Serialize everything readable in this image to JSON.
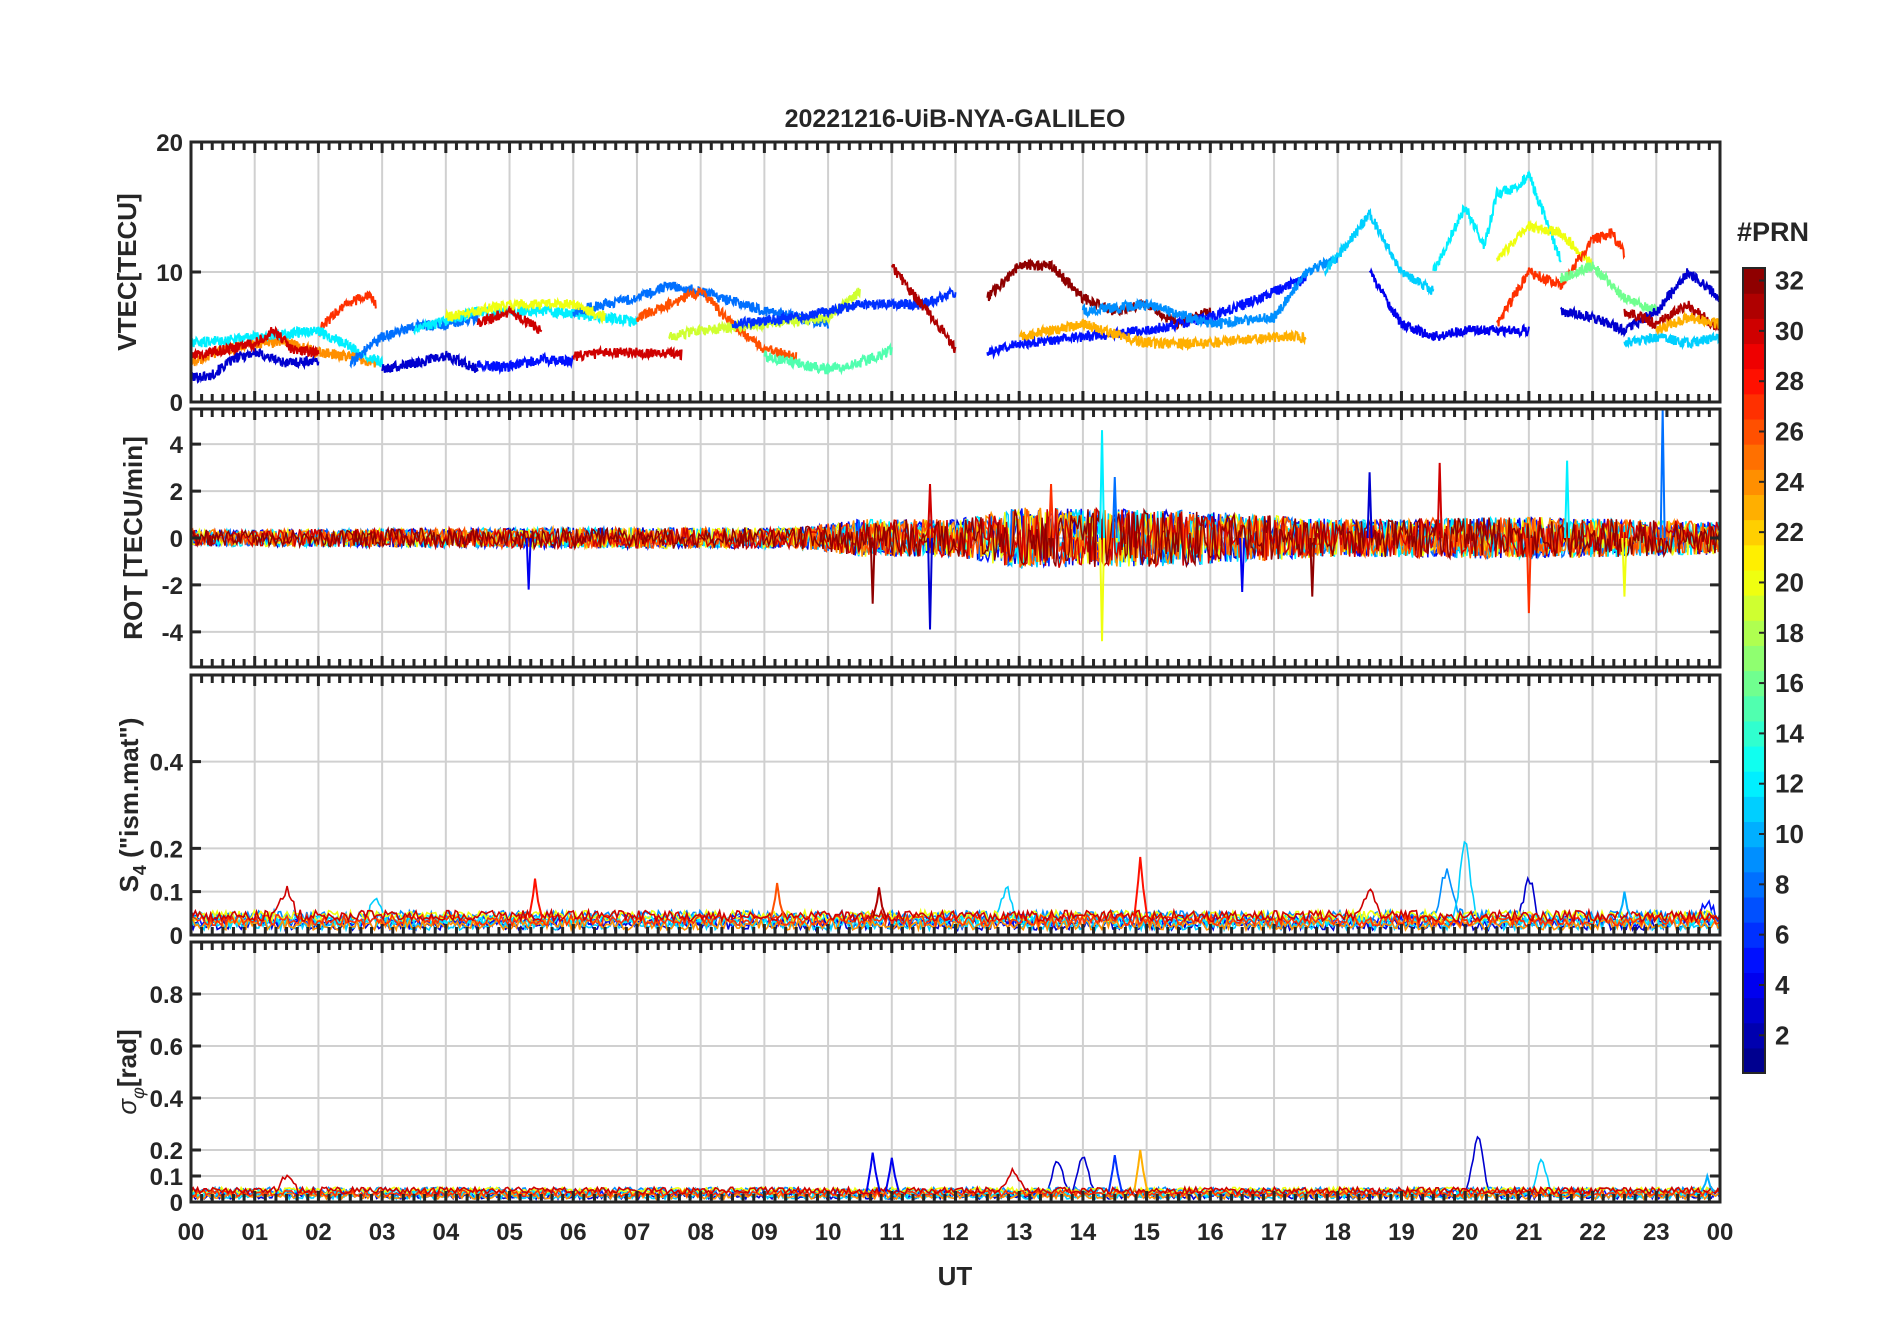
{
  "figure": {
    "title": "20221216-UiB-NYA-GALILEO",
    "xlabel": "UT",
    "x_tick_labels": [
      "00",
      "01",
      "02",
      "03",
      "04",
      "05",
      "06",
      "07",
      "08",
      "09",
      "10",
      "11",
      "12",
      "13",
      "14",
      "15",
      "16",
      "17",
      "18",
      "19",
      "20",
      "21",
      "22",
      "23",
      "00"
    ],
    "colorbar": {
      "label": "#PRN",
      "range": [
        1,
        32
      ],
      "tick_labels": [
        "2",
        "4",
        "6",
        "8",
        "10",
        "12",
        "14",
        "16",
        "18",
        "20",
        "22",
        "24",
        "26",
        "28",
        "30",
        "32"
      ],
      "colormap": "jet"
    }
  },
  "chart_data": [
    {
      "type": "line",
      "panel": "vtec",
      "ylabel": "VTEC[TECU]",
      "ylim": [
        0,
        20
      ],
      "y_ticks": [
        0,
        10,
        20
      ],
      "y_tick_labels": [
        "0",
        "10",
        "20"
      ],
      "xlim_hours": [
        0,
        24
      ],
      "grid": true,
      "legend": "colorbar (PRN)",
      "series": [
        {
          "prn": 3,
          "x": [
            0.0,
            0.3,
            0.7,
            1.0,
            1.5,
            2.0
          ],
          "y": [
            1.9,
            2.0,
            3.4,
            3.8,
            3.0,
            3.2
          ]
        },
        {
          "prn": 24,
          "x": [
            0.0,
            0.5,
            1.0,
            1.5,
            2.0,
            2.5,
            2.9
          ],
          "y": [
            3.0,
            4.0,
            4.5,
            4.6,
            3.8,
            3.5,
            3.0
          ]
        },
        {
          "prn": 27,
          "x": [
            2.0,
            2.4,
            2.8,
            2.9
          ],
          "y": [
            5.5,
            7.5,
            8.2,
            7.5
          ]
        },
        {
          "prn": 12,
          "x": [
            0.0,
            1.0,
            2.0,
            3.0
          ],
          "y": [
            4.5,
            5.0,
            5.5,
            3.0
          ]
        },
        {
          "prn": 30,
          "x": [
            0.0,
            1.0,
            1.3,
            1.6,
            2.0
          ],
          "y": [
            3.5,
            4.5,
            5.5,
            4.0,
            3.8
          ]
        },
        {
          "prn": 8,
          "x": [
            2.5,
            3.0,
            3.5,
            4.0,
            4.5
          ],
          "y": [
            3.0,
            5.0,
            5.8,
            6.0,
            6.5
          ]
        },
        {
          "prn": 3,
          "x": [
            3.0,
            3.5,
            4.0,
            4.5
          ],
          "y": [
            2.5,
            3.0,
            3.6,
            2.5
          ]
        },
        {
          "prn": 5,
          "x": [
            4.5,
            5.0,
            5.5,
            6.0
          ],
          "y": [
            2.8,
            2.7,
            3.3,
            3.2
          ]
        },
        {
          "prn": 12,
          "x": [
            3.5,
            4.5,
            5.5,
            6.5,
            7.0
          ],
          "y": [
            5.5,
            7.0,
            7.0,
            6.5,
            6.2
          ]
        },
        {
          "prn": 30,
          "x": [
            4.5,
            5.0,
            5.5
          ],
          "y": [
            6.0,
            7.0,
            5.5
          ]
        },
        {
          "prn": 8,
          "x": [
            6.0,
            7.0,
            7.5,
            8.0,
            9.0,
            10.0
          ],
          "y": [
            7.0,
            8.0,
            9.0,
            8.5,
            7.0,
            6.0
          ]
        },
        {
          "prn": 30,
          "x": [
            6.0,
            6.5,
            7.0,
            7.7
          ],
          "y": [
            3.5,
            3.8,
            3.8,
            3.7
          ]
        },
        {
          "prn": 20,
          "x": [
            4.0,
            5.0,
            6.0,
            6.5
          ],
          "y": [
            6.5,
            7.5,
            7.5,
            6.5
          ]
        },
        {
          "prn": 26,
          "x": [
            7.0,
            7.5,
            8.0,
            8.5,
            9.0,
            9.5
          ],
          "y": [
            6.5,
            7.5,
            8.5,
            6.0,
            4.0,
            3.5
          ]
        },
        {
          "prn": 19,
          "x": [
            7.5,
            8.0,
            9.0,
            10.0,
            10.5
          ],
          "y": [
            5.0,
            5.5,
            6.0,
            6.5,
            8.5
          ]
        },
        {
          "prn": 15,
          "x": [
            9.0,
            9.5,
            10.0,
            10.5,
            11.0
          ],
          "y": [
            3.5,
            3.0,
            2.5,
            3.0,
            4.0
          ]
        },
        {
          "prn": 6,
          "x": [
            8.5,
            9.5,
            10.5,
            11.5,
            12.0
          ],
          "y": [
            6.0,
            6.5,
            7.5,
            7.5,
            8.5
          ]
        },
        {
          "prn": 31,
          "x": [
            11.0,
            11.3,
            11.8,
            12.0
          ],
          "y": [
            10.5,
            8.5,
            5.5,
            4.0
          ]
        },
        {
          "prn": 32,
          "x": [
            12.5,
            13.0,
            13.5,
            14.0,
            14.5,
            15.0,
            15.5,
            16.0
          ],
          "y": [
            8.0,
            10.5,
            10.5,
            8.0,
            7.0,
            7.5,
            6.0,
            7.0
          ]
        },
        {
          "prn": 5,
          "x": [
            12.5,
            13.0,
            14.0,
            15.0,
            16.0,
            17.0,
            17.5
          ],
          "y": [
            3.8,
            4.5,
            5.0,
            5.5,
            6.5,
            8.5,
            9.5
          ]
        },
        {
          "prn": 23,
          "x": [
            13.0,
            14.0,
            15.0,
            16.0,
            17.0,
            17.5
          ],
          "y": [
            5.0,
            6.0,
            4.5,
            4.5,
            5.0,
            5.0
          ]
        },
        {
          "prn": 9,
          "x": [
            14.0,
            15.0,
            16.0,
            17.0,
            17.5,
            18.0
          ],
          "y": [
            7.0,
            7.5,
            6.0,
            6.5,
            10.0,
            11.0
          ]
        },
        {
          "prn": 11,
          "x": [
            17.8,
            18.2,
            18.5,
            19.0,
            19.5
          ],
          "y": [
            10.0,
            12.5,
            14.5,
            10.0,
            8.5
          ]
        },
        {
          "prn": 4,
          "x": [
            18.5,
            19.0,
            19.5,
            20.0,
            21.0
          ],
          "y": [
            10.0,
            6.0,
            5.0,
            5.5,
            5.5
          ]
        },
        {
          "prn": 12,
          "x": [
            19.5,
            20.0,
            20.3,
            20.5,
            20.8,
            21.0,
            21.5
          ],
          "y": [
            10.0,
            15.0,
            12.0,
            16.0,
            16.5,
            17.5,
            11.0
          ]
        },
        {
          "prn": 20,
          "x": [
            20.5,
            21.0,
            21.5,
            22.0
          ],
          "y": [
            11.0,
            13.5,
            13.0,
            10.5
          ]
        },
        {
          "prn": 27,
          "x": [
            20.5,
            21.0,
            21.5,
            22.0,
            22.3,
            22.5
          ],
          "y": [
            6.0,
            10.0,
            9.0,
            12.5,
            13.0,
            11.5
          ]
        },
        {
          "prn": 16,
          "x": [
            21.5,
            22.0,
            22.5,
            23.0
          ],
          "y": [
            9.5,
            10.5,
            8.0,
            7.0
          ]
        },
        {
          "prn": 11,
          "x": [
            22.5,
            23.0,
            23.5,
            24.0
          ],
          "y": [
            4.5,
            5.0,
            4.5,
            5.0
          ]
        },
        {
          "prn": 3,
          "x": [
            21.5,
            22.0,
            22.5,
            23.0,
            23.5,
            24.0
          ],
          "y": [
            7.0,
            6.5,
            5.5,
            7.0,
            10.0,
            8.0
          ]
        },
        {
          "prn": 31,
          "x": [
            22.5,
            23.0,
            23.5,
            24.0
          ],
          "y": [
            7.0,
            6.0,
            7.5,
            5.5
          ]
        },
        {
          "prn": 23,
          "x": [
            23.0,
            23.5,
            24.0
          ],
          "y": [
            5.5,
            6.5,
            6.0
          ]
        }
      ]
    },
    {
      "type": "line",
      "panel": "rot",
      "ylabel": "ROT [TECU/min]",
      "ylim": [
        -5.5,
        5.5
      ],
      "y_ticks": [
        -4,
        -2,
        0,
        2,
        4
      ],
      "y_tick_labels": [
        "-4",
        "-2",
        "0",
        "2",
        "4"
      ],
      "xlim_hours": [
        0,
        24
      ],
      "grid": true,
      "noise_envelope_hours": [
        0,
        6,
        9.5,
        10.5,
        12,
        13,
        15.5,
        18,
        21,
        24
      ],
      "noise_envelope_amplitude": [
        0.35,
        0.45,
        0.45,
        0.8,
        0.8,
        1.3,
        1.2,
        0.8,
        0.9,
        0.7
      ],
      "spikes": [
        {
          "x": 5.3,
          "y": -2.2
        },
        {
          "x": 10.7,
          "y": -2.8
        },
        {
          "x": 11.6,
          "y": -3.9
        },
        {
          "x": 11.6,
          "y": 2.3
        },
        {
          "x": 13.5,
          "y": 2.3
        },
        {
          "x": 14.3,
          "y": 4.6
        },
        {
          "x": 14.3,
          "y": -4.4
        },
        {
          "x": 14.5,
          "y": 2.6
        },
        {
          "x": 16.5,
          "y": -2.3
        },
        {
          "x": 17.6,
          "y": -2.5
        },
        {
          "x": 18.5,
          "y": 2.8
        },
        {
          "x": 19.6,
          "y": 3.2
        },
        {
          "x": 21.0,
          "y": -3.2
        },
        {
          "x": 21.6,
          "y": 3.3
        },
        {
          "x": 22.5,
          "y": -2.5
        },
        {
          "x": 23.1,
          "y": 5.5
        }
      ]
    },
    {
      "type": "line",
      "panel": "s4",
      "ylabel": "S4 (\"ism.mat\")",
      "ylim": [
        0,
        0.6
      ],
      "y_ticks": [
        0,
        0.1,
        0.2,
        0.4
      ],
      "y_tick_labels": [
        "0",
        "0.1",
        "0.2",
        "0.4"
      ],
      "xlim_hours": [
        0,
        24
      ],
      "grid": true,
      "baseline": 0.04,
      "noise_amplitude": 0.025,
      "peaks": [
        {
          "x": 1.5,
          "y": 0.1,
          "prn": 30
        },
        {
          "x": 2.9,
          "y": 0.11,
          "prn": 11
        },
        {
          "x": 5.4,
          "y": 0.13,
          "prn": 28
        },
        {
          "x": 9.2,
          "y": 0.12,
          "prn": 26
        },
        {
          "x": 10.8,
          "y": 0.11,
          "prn": 31
        },
        {
          "x": 12.8,
          "y": 0.12,
          "prn": 11
        },
        {
          "x": 14.9,
          "y": 0.18,
          "prn": 28
        },
        {
          "x": 18.5,
          "y": 0.1,
          "prn": 30
        },
        {
          "x": 19.7,
          "y": 0.14,
          "prn": 9
        },
        {
          "x": 20.0,
          "y": 0.22,
          "prn": 11
        },
        {
          "x": 21.0,
          "y": 0.14,
          "prn": 3
        },
        {
          "x": 22.5,
          "y": 0.1,
          "prn": 10
        },
        {
          "x": 23.8,
          "y": 0.08,
          "prn": 5
        }
      ]
    },
    {
      "type": "line",
      "panel": "sigma_phi",
      "ylabel": "σφ[rad]",
      "ylim": [
        0,
        1
      ],
      "y_ticks": [
        0,
        0.1,
        0.2,
        0.4,
        0.6,
        0.8
      ],
      "y_tick_labels": [
        "0",
        "0.1",
        "0.2",
        "0.4",
        "0.6",
        "0.8"
      ],
      "xlim_hours": [
        0,
        24
      ],
      "grid": true,
      "baseline": 0.04,
      "noise_amplitude": 0.025,
      "peaks": [
        {
          "x": 1.5,
          "y": 0.09,
          "prn": 30
        },
        {
          "x": 10.7,
          "y": 0.19,
          "prn": 4
        },
        {
          "x": 11.0,
          "y": 0.17,
          "prn": 4
        },
        {
          "x": 12.9,
          "y": 0.12,
          "prn": 30
        },
        {
          "x": 13.6,
          "y": 0.18,
          "prn": 3
        },
        {
          "x": 14.0,
          "y": 0.19,
          "prn": 3
        },
        {
          "x": 14.5,
          "y": 0.18,
          "prn": 6
        },
        {
          "x": 14.9,
          "y": 0.2,
          "prn": 23
        },
        {
          "x": 20.2,
          "y": 0.26,
          "prn": 3
        },
        {
          "x": 21.2,
          "y": 0.17,
          "prn": 11
        },
        {
          "x": 23.8,
          "y": 0.1,
          "prn": 10
        }
      ]
    }
  ]
}
